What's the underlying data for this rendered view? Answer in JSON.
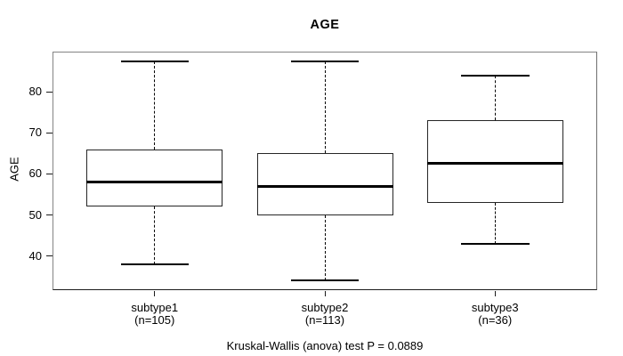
{
  "chart_data": {
    "type": "boxplot",
    "title": "AGE",
    "ylabel": "AGE",
    "xlabel": "",
    "grid": false,
    "legend": "none",
    "ylim": [
      31.7,
      89.8
    ],
    "yticks": [
      40,
      50,
      60,
      70,
      80
    ],
    "categories": [
      "subtype1",
      "subtype2",
      "subtype3"
    ],
    "category_counts": [
      "(n=105)",
      "(n=113)",
      "(n=36)"
    ],
    "series": [
      {
        "name": "subtype1",
        "n": 105,
        "lower_whisker": 38,
        "q1": 52,
        "median": 58,
        "q3": 66,
        "upper_whisker": 87.5,
        "outliers": []
      },
      {
        "name": "subtype2",
        "n": 113,
        "lower_whisker": 34,
        "q1": 50,
        "median": 57,
        "q3": 65,
        "upper_whisker": 87.5,
        "outliers": []
      },
      {
        "name": "subtype3",
        "n": 36,
        "lower_whisker": 43,
        "q1": 53,
        "median": 62.5,
        "q3": 73,
        "upper_whisker": 84,
        "outliers": []
      }
    ],
    "annotation": "Kruskal-Wallis (anova) test P = 0.0889",
    "colors": {
      "box_fill": "#ffffff",
      "line_color": "#000000",
      "background": "#ffffff"
    }
  }
}
